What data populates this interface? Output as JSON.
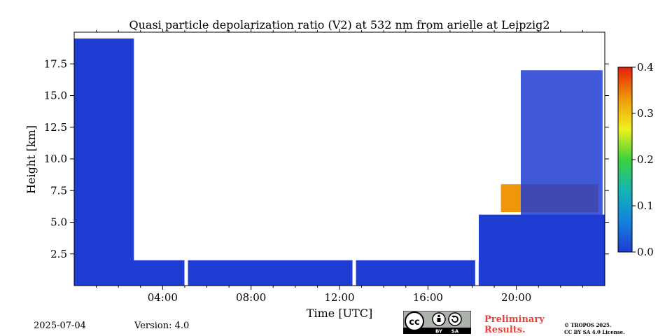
{
  "chart_data": {
    "type": "heatmap",
    "title": "Quasi particle depolarization ratio (V2) at 532 nm from arielle at Leipzig2",
    "xlabel": "Time [UTC]",
    "ylabel": "Height [km]",
    "xlim": [
      0,
      24
    ],
    "ylim": [
      0,
      20
    ],
    "x_ticks": [
      {
        "value": 4,
        "label": "04:00"
      },
      {
        "value": 8,
        "label": "08:00"
      },
      {
        "value": 12,
        "label": "12:00"
      },
      {
        "value": 16,
        "label": "16:00"
      },
      {
        "value": 20,
        "label": "20:00"
      }
    ],
    "y_ticks": [
      {
        "value": 2.5,
        "label": "2.5"
      },
      {
        "value": 5.0,
        "label": "5.0"
      },
      {
        "value": 7.5,
        "label": "7.5"
      },
      {
        "value": 10.0,
        "label": "10.0"
      },
      {
        "value": 12.5,
        "label": "12.5"
      },
      {
        "value": 15.0,
        "label": "15.0"
      },
      {
        "value": 17.5,
        "label": "17.5"
      }
    ],
    "colorbar": {
      "range": [
        0.0,
        0.4
      ],
      "ticks": [
        {
          "value": 0.0,
          "label": "0.0"
        },
        {
          "value": 0.1,
          "label": "0.1"
        },
        {
          "value": 0.2,
          "label": "0.2"
        },
        {
          "value": 0.3,
          "label": "0.3"
        },
        {
          "value": 0.4,
          "label": "0.4"
        }
      ],
      "colormap": [
        "#1e3cd2",
        "#1482dc",
        "#14b4b4",
        "#3cd23c",
        "#f0f01e",
        "#f0960a",
        "#e61e0a"
      ]
    },
    "data_gaps_utc": [
      5.05,
      12.65,
      18.2
    ],
    "regions": [
      {
        "kind": "aerosol-layer",
        "t0": 0.0,
        "t1": 2.7,
        "h0": 0.0,
        "h1": 19.5,
        "value": 0.02
      },
      {
        "kind": "boundary-layer",
        "t0": 0.0,
        "t1": 24.0,
        "h0": 0.0,
        "h1": 2.0,
        "value": 0.03
      },
      {
        "kind": "boundary-layer",
        "t0": 18.3,
        "t1": 24.0,
        "h0": 0.0,
        "h1": 5.6,
        "value": 0.03
      },
      {
        "kind": "depolarizing-layer",
        "t0": 19.3,
        "t1": 23.7,
        "h0": 5.8,
        "h1": 8.0,
        "value": 0.35
      },
      {
        "kind": "cirrus",
        "t0": 20.2,
        "t1": 23.9,
        "h0": 5.5,
        "h1": 17.0,
        "value": 0.03
      }
    ]
  },
  "footer": {
    "date": "2025-07-04",
    "version": "Version: 4.0",
    "preliminary_line1": "Preliminary",
    "preliminary_line2": "Results.",
    "copyright_line1": "© TROPOS 2025.",
    "copyright_line2": "CC BY SA 4.0 License.",
    "cc_labels": [
      "BY",
      "SA"
    ]
  }
}
